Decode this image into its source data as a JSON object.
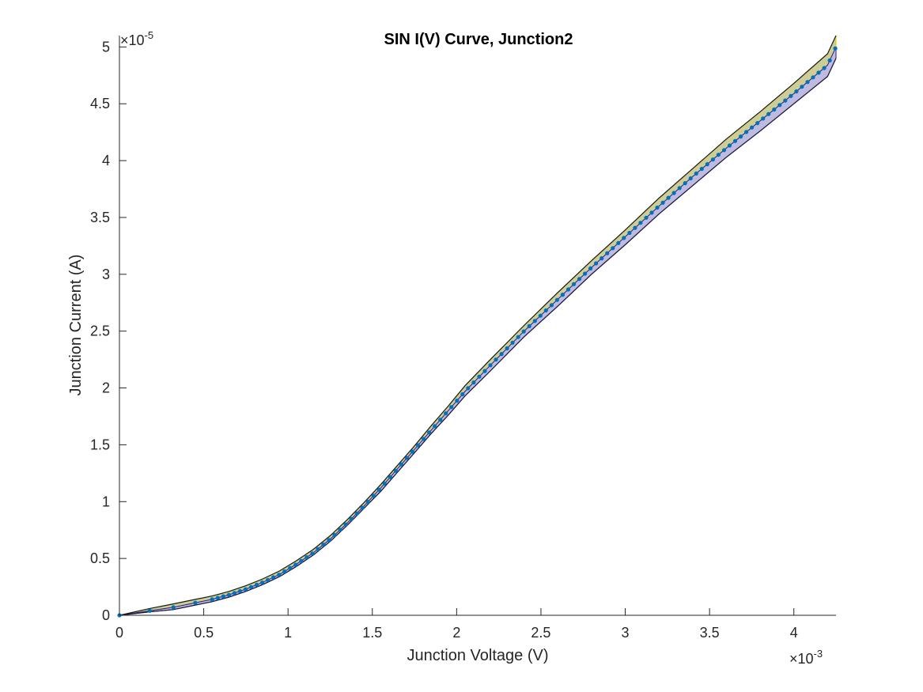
{
  "colors": {
    "marker": "#0072BD",
    "upper_band_fill": "#C8C88A",
    "upper_band_edge": "#CFCF00",
    "lower_band_fill": "#A9A3D6",
    "lower_band_edge": "#2B1E8C",
    "axis": "#262626"
  },
  "chart_data": {
    "type": "scatter",
    "title": "SIN I(V) Curve, Junction2",
    "xlabel": "Junction Voltage (V)",
    "ylabel": "Junction Current (A)",
    "x_multiplier_label": "×10",
    "x_multiplier_exponent": "-3",
    "y_multiplier_label": "×10",
    "y_multiplier_exponent": "-5",
    "xlim": [
      0,
      4.25
    ],
    "ylim": [
      0,
      5.1
    ],
    "x_scale_note": "values in units of 1e-3 V",
    "y_scale_note": "values in units of 1e-5 A",
    "x_ticks": [
      0,
      0.5,
      1,
      1.5,
      2,
      2.5,
      3,
      3.5,
      4
    ],
    "x_tick_labels": [
      "0",
      "0.5",
      "1",
      "1.5",
      "2",
      "2.5",
      "3",
      "3.5",
      "4"
    ],
    "y_ticks": [
      0,
      0.5,
      1,
      1.5,
      2,
      2.5,
      3,
      3.5,
      4,
      4.5,
      5
    ],
    "y_tick_labels": [
      "0",
      "0.5",
      "1",
      "1.5",
      "2",
      "2.5",
      "3",
      "3.5",
      "4",
      "4.5",
      "5"
    ],
    "grid": false,
    "curve_knots": {
      "x": [
        0,
        0.18,
        0.32,
        0.45,
        0.55,
        0.65,
        0.75,
        0.85,
        0.95,
        1.05,
        1.15,
        1.25,
        1.35,
        1.45,
        1.55,
        1.65,
        1.75,
        1.85,
        1.95,
        2.05,
        2.2,
        2.4,
        2.6,
        2.8,
        3.0,
        3.2,
        3.4,
        3.6,
        3.8,
        4.0,
        4.2,
        4.25
      ],
      "y": [
        0,
        0.04,
        0.07,
        0.11,
        0.14,
        0.18,
        0.23,
        0.29,
        0.36,
        0.45,
        0.55,
        0.67,
        0.81,
        0.96,
        1.12,
        1.29,
        1.46,
        1.63,
        1.8,
        1.97,
        2.2,
        2.5,
        2.78,
        3.06,
        3.33,
        3.6,
        3.86,
        4.11,
        4.35,
        4.59,
        4.84,
        5.0
      ]
    },
    "band": {
      "description": "shaded uncertainty band around the curve",
      "upper_offset": [
        0,
        0.02,
        0.03,
        0.03,
        0.03,
        0.03,
        0.03,
        0.03,
        0.03,
        0.03,
        0.03,
        0.03,
        0.03,
        0.03,
        0.03,
        0.03,
        0.03,
        0.04,
        0.04,
        0.05,
        0.05,
        0.05,
        0.06,
        0.06,
        0.06,
        0.07,
        0.07,
        0.08,
        0.08,
        0.09,
        0.1,
        0.1
      ],
      "lower_offset": [
        0,
        0.01,
        0.02,
        0.02,
        0.02,
        0.02,
        0.02,
        0.02,
        0.02,
        0.02,
        0.02,
        0.02,
        0.02,
        0.02,
        0.03,
        0.03,
        0.03,
        0.03,
        0.04,
        0.04,
        0.05,
        0.05,
        0.06,
        0.06,
        0.07,
        0.07,
        0.08,
        0.08,
        0.09,
        0.09,
        0.1,
        0.1
      ]
    },
    "marker_sampling": {
      "sparse_x": [
        0,
        0.18,
        0.32,
        0.45
      ],
      "dense_start": 0.55,
      "dense_end": 4.25,
      "dense_step": 0.033
    }
  }
}
